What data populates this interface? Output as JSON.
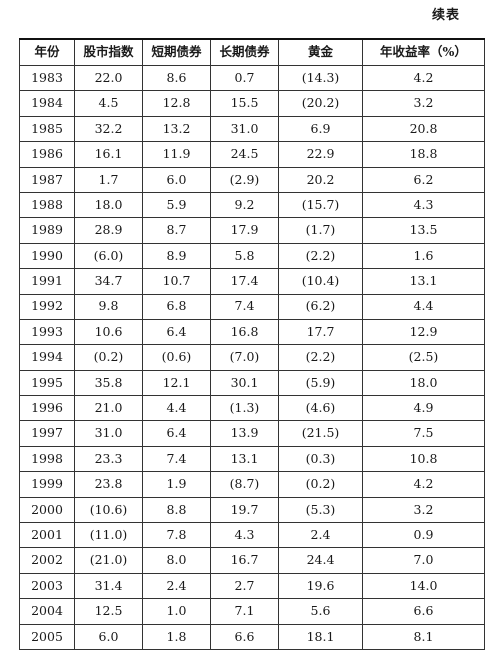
{
  "continued_label": "续表",
  "table": {
    "headers": [
      "年份",
      "股市指数",
      "短期债券",
      "长期债券",
      "黄金",
      "年收益率（%）"
    ],
    "rows": [
      [
        "1983",
        "22.0",
        "8.6",
        "0.7",
        "(14.3)",
        "4.2"
      ],
      [
        "1984",
        "4.5",
        "12.8",
        "15.5",
        "(20.2)",
        "3.2"
      ],
      [
        "1985",
        "32.2",
        "13.2",
        "31.0",
        "6.9",
        "20.8"
      ],
      [
        "1986",
        "16.1",
        "11.9",
        "24.5",
        "22.9",
        "18.8"
      ],
      [
        "1987",
        "1.7",
        "6.0",
        "(2.9)",
        "20.2",
        "6.2"
      ],
      [
        "1988",
        "18.0",
        "5.9",
        "9.2",
        "(15.7)",
        "4.3"
      ],
      [
        "1989",
        "28.9",
        "8.7",
        "17.9",
        "(1.7)",
        "13.5"
      ],
      [
        "1990",
        "(6.0)",
        "8.9",
        "5.8",
        "(2.2)",
        "1.6"
      ],
      [
        "1991",
        "34.7",
        "10.7",
        "17.4",
        "(10.4)",
        "13.1"
      ],
      [
        "1992",
        "9.8",
        "6.8",
        "7.4",
        "(6.2)",
        "4.4"
      ],
      [
        "1993",
        "10.6",
        "6.4",
        "16.8",
        "17.7",
        "12.9"
      ],
      [
        "1994",
        "(0.2)",
        "(0.6)",
        "(7.0)",
        "(2.2)",
        "(2.5)"
      ],
      [
        "1995",
        "35.8",
        "12.1",
        "30.1",
        "(5.9)",
        "18.0"
      ],
      [
        "1996",
        "21.0",
        "4.4",
        "(1.3)",
        "(4.6)",
        "4.9"
      ],
      [
        "1997",
        "31.0",
        "6.4",
        "13.9",
        "(21.5)",
        "7.5"
      ],
      [
        "1998",
        "23.3",
        "7.4",
        "13.1",
        "(0.3)",
        "10.8"
      ],
      [
        "1999",
        "23.8",
        "1.9",
        "(8.7)",
        "(0.2)",
        "4.2"
      ],
      [
        "2000",
        "(10.6)",
        "8.8",
        "19.7",
        "(5.3)",
        "3.2"
      ],
      [
        "2001",
        "(11.0)",
        "7.8",
        "4.3",
        "2.4",
        "0.9"
      ],
      [
        "2002",
        "(21.0)",
        "8.0",
        "16.7",
        "24.4",
        "7.0"
      ],
      [
        "2003",
        "31.4",
        "2.4",
        "2.7",
        "19.6",
        "14.0"
      ],
      [
        "2004",
        "12.5",
        "1.0",
        "7.1",
        "5.6",
        "6.6"
      ],
      [
        "2005",
        "6.0",
        "1.8",
        "6.6",
        "18.1",
        "8.1"
      ]
    ]
  }
}
